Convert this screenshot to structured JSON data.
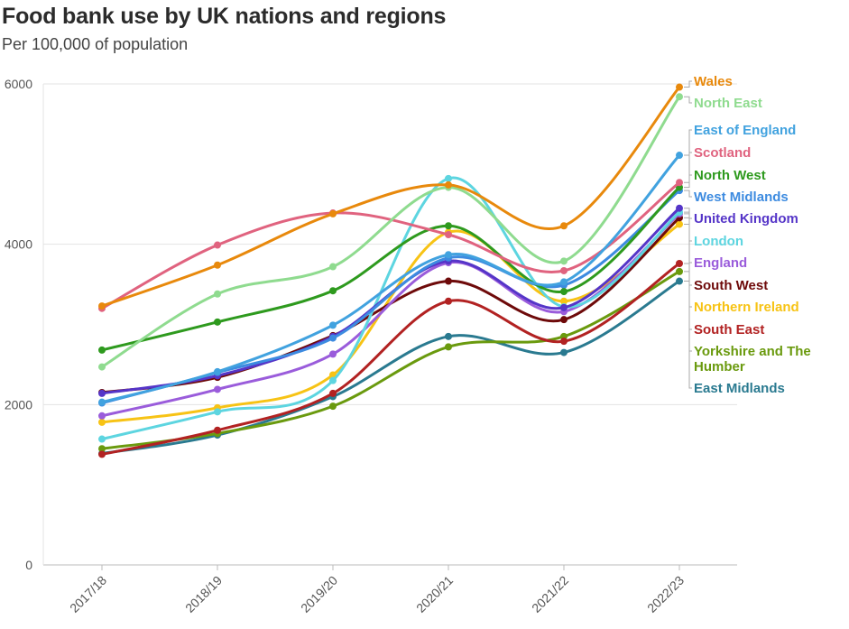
{
  "title": "Food bank use by UK nations and regions",
  "subtitle": "Per 100,000 of population",
  "chart_data": {
    "type": "line",
    "title": "Food bank use by UK nations and regions",
    "subtitle": "Per 100,000 of population",
    "xlabel": "",
    "ylabel": "",
    "categories": [
      "2017/18",
      "2018/19",
      "2019/20",
      "2020/21",
      "2021/22",
      "2022/23"
    ],
    "yticks": [
      0,
      2000,
      4000,
      6000
    ],
    "ylim": [
      0,
      6000
    ],
    "grid": true,
    "legend_position": "right (direct labels at line ends)",
    "series": [
      {
        "name": "Wales",
        "color": "#E8890C",
        "values": [
          3230,
          3740,
          4380,
          4740,
          4230,
          5960
        ]
      },
      {
        "name": "North East",
        "color": "#8FDB8F",
        "values": [
          2470,
          3380,
          3720,
          4710,
          3790,
          5840
        ]
      },
      {
        "name": "East of England",
        "color": "#41A2DF",
        "values": [
          2030,
          2410,
          2990,
          3870,
          3530,
          5110
        ]
      },
      {
        "name": "Scotland",
        "color": "#E0637F",
        "values": [
          3200,
          3990,
          4390,
          4120,
          3670,
          4770
        ]
      },
      {
        "name": "North West",
        "color": "#2E9A1E",
        "values": [
          2680,
          3030,
          3420,
          4230,
          3410,
          4710
        ]
      },
      {
        "name": "West Midlands",
        "color": "#3D8BE0",
        "values": [
          2020,
          2400,
          2830,
          3830,
          3490,
          4670
        ]
      },
      {
        "name": "United Kingdom",
        "color": "#5535C8",
        "values": [
          2140,
          2360,
          2850,
          3790,
          3210,
          4450
        ]
      },
      {
        "name": "London",
        "color": "#5DD5E0",
        "values": [
          1570,
          1910,
          2300,
          4820,
          3220,
          4400
        ]
      },
      {
        "name": "England",
        "color": "#9A5CDB",
        "values": [
          1860,
          2190,
          2630,
          3770,
          3160,
          4380
        ]
      },
      {
        "name": "South West",
        "color": "#6E0A0A",
        "values": [
          2150,
          2340,
          2860,
          3540,
          3060,
          4330
        ]
      },
      {
        "name": "Northern Ireland",
        "color": "#F7C315",
        "values": [
          1780,
          1960,
          2370,
          4150,
          3290,
          4250
        ]
      },
      {
        "name": "South East",
        "color": "#B22222",
        "values": [
          1380,
          1680,
          2140,
          3290,
          2790,
          3760
        ]
      },
      {
        "name": "Yorkshire and The Humber",
        "color": "#6A9A0E",
        "values": [
          1450,
          1640,
          1980,
          2720,
          2850,
          3660
        ]
      },
      {
        "name": "East Midlands",
        "color": "#2A7A90",
        "values": [
          1390,
          1620,
          2100,
          2850,
          2650,
          3540
        ]
      }
    ]
  }
}
